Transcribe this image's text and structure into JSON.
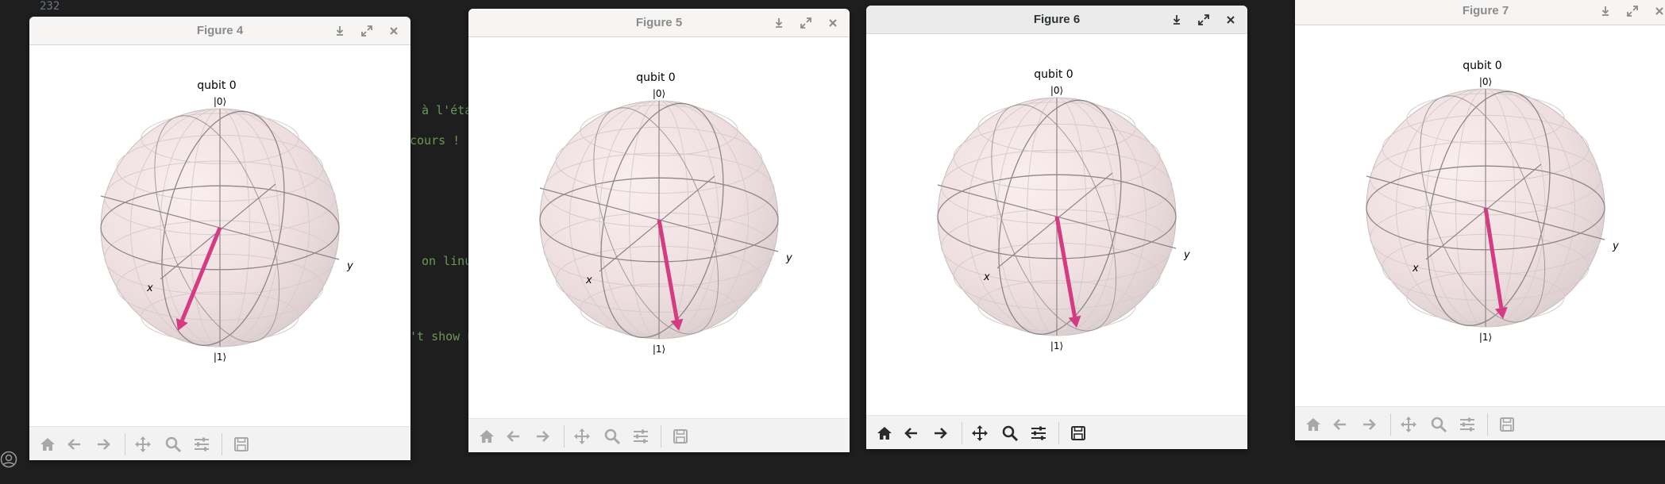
{
  "editor": {
    "line_number": "232",
    "snippets": [
      " à l'étap",
      "cours !",
      " on linux",
      "'t show u"
    ]
  },
  "figures": [
    {
      "title": "Figure 4",
      "qubit_label": "qubit 0",
      "ket0": "|0⟩",
      "ket1": "|1⟩",
      "x_label": "x",
      "y_label": "y",
      "active": false
    },
    {
      "title": "Figure 5",
      "qubit_label": "qubit 0",
      "ket0": "|0⟩",
      "ket1": "|1⟩",
      "x_label": "x",
      "y_label": "y",
      "active": false
    },
    {
      "title": "Figure 6",
      "qubit_label": "qubit 0",
      "ket0": "|0⟩",
      "ket1": "|1⟩",
      "x_label": "x",
      "y_label": "y",
      "active": true
    },
    {
      "title": "Figure 7",
      "qubit_label": "qubit 0",
      "ket0": "|0⟩",
      "ket1": "|1⟩",
      "x_label": "x",
      "y_label": "y",
      "active": false
    }
  ],
  "titlebar_buttons": [
    "download-icon",
    "maximize-icon",
    "close-icon"
  ],
  "toolbar_icons": [
    "home-icon",
    "back-arrow-icon",
    "forward-arrow-icon",
    "pan-icon",
    "zoom-icon",
    "configure-subplots-icon",
    "save-icon"
  ],
  "colors": {
    "vector": "#d63a82",
    "sphere": "#f4e6e6",
    "active_title": "#2e3436",
    "inactive_title": "#8b8b8b"
  }
}
